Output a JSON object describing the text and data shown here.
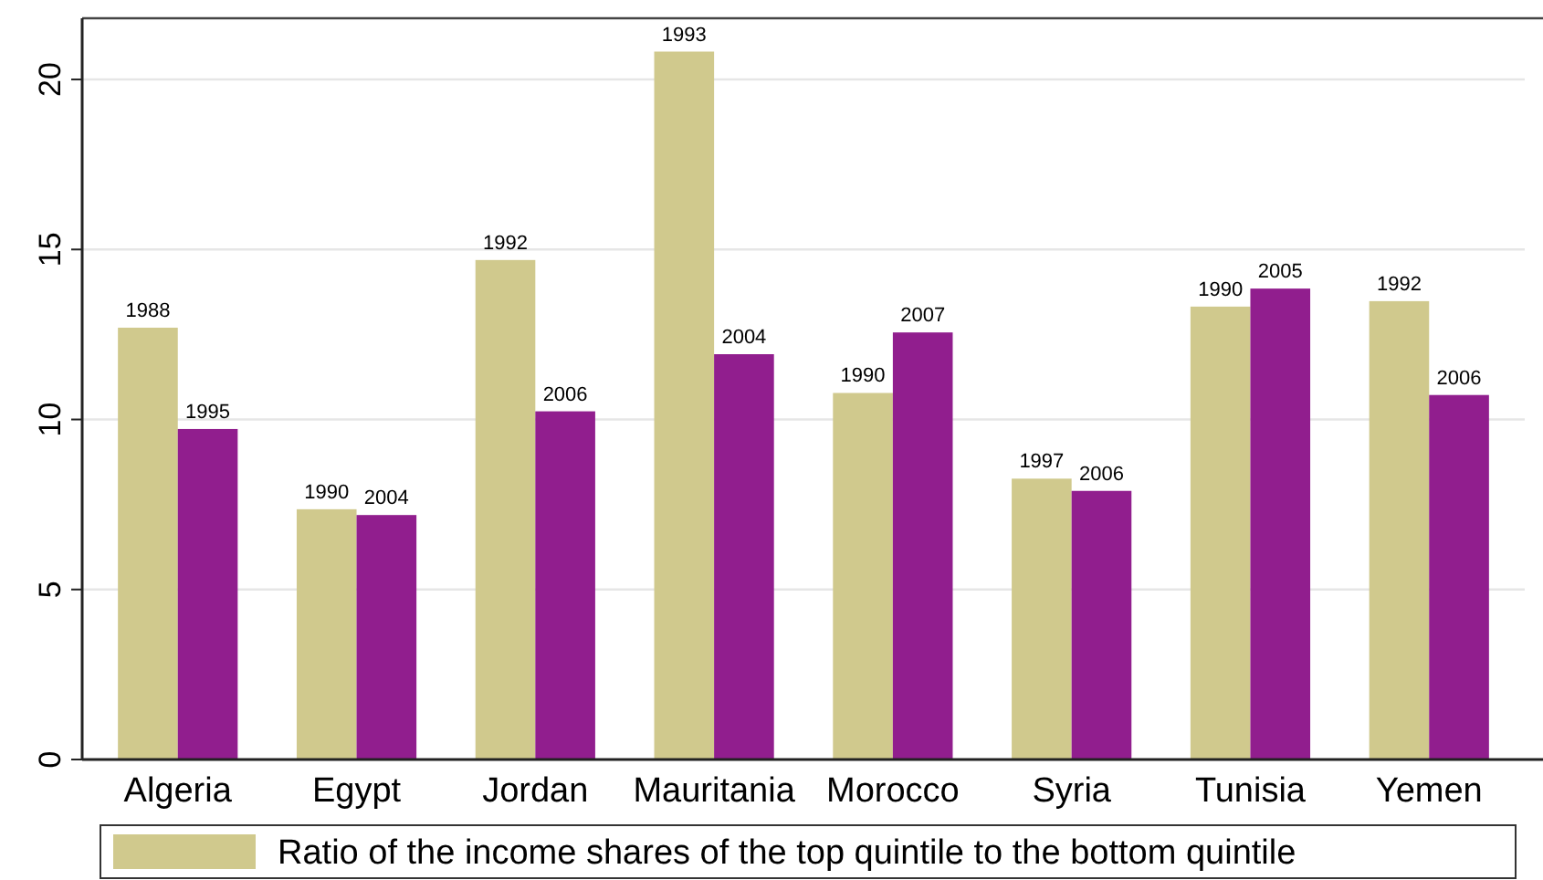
{
  "chart_data": {
    "type": "bar",
    "categories": [
      "Algeria",
      "Egypt",
      "Jordan",
      "Mauritania",
      "Morocco",
      "Syria",
      "Tunisia",
      "Yemen"
    ],
    "series": [
      {
        "name": "Ratio of the income shares of the top quintile to the bottom quintile",
        "color": "#d0c98d",
        "values": [
          12.7,
          7.36,
          14.69,
          20.82,
          10.78,
          8.26,
          13.32,
          13.48
        ]
      },
      {
        "color": "#911e8e",
        "values": [
          9.72,
          7.19,
          10.24,
          11.92,
          12.56,
          7.9,
          13.85,
          10.72
        ]
      }
    ],
    "annotations": [
      {
        "text": "1988",
        "x": "Algeria",
        "y": 12.7
      },
      {
        "text": "1995",
        "x": "Algeria",
        "y": 9.72
      },
      {
        "text": "1990",
        "x": "Egypt",
        "y": 7.36
      },
      {
        "text": "2004",
        "x": "Egypt",
        "y": 7.19
      },
      {
        "text": "1992",
        "x": "Jordan",
        "y": 14.69
      },
      {
        "text": "2006",
        "x": "Jordan",
        "y": 10.24
      },
      {
        "text": "1993",
        "x": "Mauritania",
        "y": 20.82
      },
      {
        "text": "2004",
        "x": "Mauritania",
        "y": 11.92
      },
      {
        "text": "1990",
        "x": "Morocco",
        "y": 10.78
      },
      {
        "text": "2007",
        "x": "Morocco",
        "y": 12.56
      },
      {
        "text": "1997",
        "x": "Syria",
        "y": 8.26
      },
      {
        "text": "2006",
        "x": "Syria",
        "y": 7.9
      },
      {
        "text": "1990",
        "x": "Tunisia",
        "y": 13.32
      },
      {
        "text": "2005",
        "x": "Tunisia",
        "y": 13.85
      },
      {
        "text": "1992",
        "x": "Yemen",
        "y": 13.48
      },
      {
        "text": "2006",
        "x": "Yemen",
        "y": 10.72
      }
    ],
    "ylim": [
      0,
      21.8
    ],
    "yticks": [
      0,
      5,
      10,
      15,
      20
    ],
    "grid": "y",
    "legend": "bottom"
  }
}
